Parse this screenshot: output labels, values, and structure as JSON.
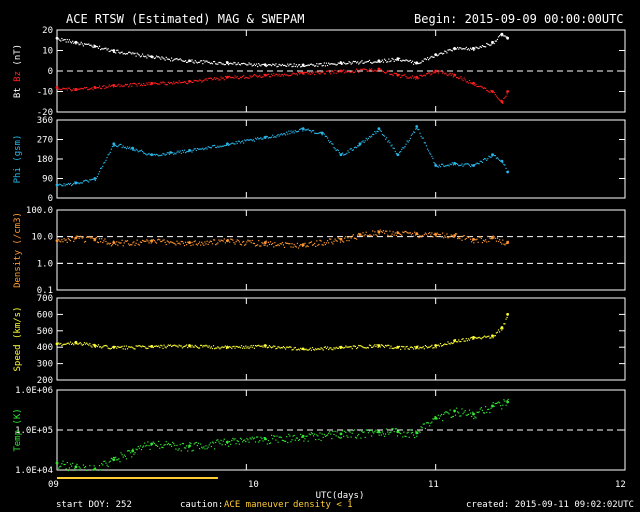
{
  "header": {
    "title": "ACE RTSW (Estimated) MAG & SWEPAM",
    "begin": "Begin: 2015-09-09 00:00:00UTC"
  },
  "footer": {
    "start_doy": "start DOY: 252",
    "caution_prefix": "caution:",
    "caution_maneuver": "ACE maneuver",
    "caution_density": "density < 1",
    "created": "created: 2015-09-11 09:02:02UTC"
  },
  "colors": {
    "background": "#000000",
    "axes": "#ffffff",
    "bt": "#ffffff",
    "bz": "#ff2020",
    "phi": "#29b6e8",
    "density": "#ff9933",
    "speed": "#ffff33",
    "temp": "#33e633",
    "caution": "#ffcc33",
    "maneuver_bar": "#ffcc33"
  },
  "chart_data": [
    {
      "type": "scatter",
      "panel": "magnetic",
      "ylabel_parts": [
        "Bt",
        "Bz",
        "(nT)"
      ],
      "ylim": [
        -20,
        20
      ],
      "yticks": [
        -20,
        -10,
        0,
        10,
        20
      ],
      "ytick_labels": [
        "-20",
        "-10",
        "0",
        "10",
        "20"
      ],
      "reference_lines": [
        0
      ],
      "series": [
        {
          "name": "Bt",
          "x": [
            9.0,
            9.1,
            9.2,
            9.3,
            9.5,
            9.7,
            9.9,
            10.1,
            10.3,
            10.5,
            10.7,
            10.8,
            10.9,
            11.0,
            11.1,
            11.2,
            11.3,
            11.35,
            11.38
          ],
          "y": [
            16,
            14,
            12,
            10,
            7,
            5,
            4,
            3,
            3,
            4,
            5,
            6,
            4,
            8,
            11,
            11,
            14,
            18,
            16
          ]
        },
        {
          "name": "Bz",
          "x": [
            9.0,
            9.1,
            9.2,
            9.3,
            9.5,
            9.7,
            9.9,
            10.1,
            10.3,
            10.5,
            10.7,
            10.8,
            10.9,
            11.0,
            11.1,
            11.2,
            11.3,
            11.35,
            11.38
          ],
          "y": [
            -8,
            -9,
            -8,
            -7,
            -6,
            -5,
            -3,
            -2,
            -1,
            0,
            1,
            -2,
            -3,
            0,
            -2,
            -6,
            -10,
            -15,
            -10
          ]
        }
      ]
    },
    {
      "type": "scatter",
      "panel": "phi",
      "ylabel": "Phi (gsm)",
      "ylim": [
        0,
        360
      ],
      "yticks": [
        0,
        90,
        180,
        270,
        360
      ],
      "ytick_labels": [
        "0",
        "90",
        "180",
        "270",
        "360"
      ],
      "series": [
        {
          "name": "Phi",
          "x": [
            9.0,
            9.1,
            9.2,
            9.3,
            9.4,
            9.5,
            9.6,
            9.7,
            9.9,
            10.1,
            10.3,
            10.4,
            10.5,
            10.6,
            10.7,
            10.8,
            10.9,
            11.0,
            11.1,
            11.2,
            11.3,
            11.35,
            11.38
          ],
          "y": [
            60,
            70,
            90,
            250,
            230,
            200,
            210,
            220,
            250,
            280,
            320,
            300,
            200,
            250,
            320,
            200,
            330,
            150,
            160,
            150,
            200,
            170,
            120
          ]
        }
      ]
    },
    {
      "type": "scatter",
      "panel": "density",
      "ylabel": "Density (/cm3)",
      "yscale": "log",
      "ylim": [
        0.1,
        100
      ],
      "yticks": [
        0.1,
        1,
        10,
        100
      ],
      "ytick_labels": [
        "0.1",
        "1.0",
        "10.0",
        "100.0"
      ],
      "reference_lines": [
        1,
        10
      ],
      "series": [
        {
          "name": "Density",
          "x": [
            9.0,
            9.1,
            9.2,
            9.3,
            9.5,
            9.7,
            9.9,
            10.1,
            10.3,
            10.5,
            10.6,
            10.7,
            10.8,
            10.9,
            11.0,
            11.1,
            11.2,
            11.3,
            11.38
          ],
          "y": [
            7,
            9,
            8,
            6,
            7,
            6,
            7,
            6,
            5,
            8,
            12,
            15,
            14,
            13,
            12,
            11,
            8,
            9,
            6
          ]
        }
      ]
    },
    {
      "type": "scatter",
      "panel": "speed",
      "ylabel": "Speed (km/s)",
      "ylim": [
        200,
        700
      ],
      "yticks": [
        200,
        300,
        400,
        500,
        600,
        700
      ],
      "ytick_labels": [
        "200",
        "300",
        "400",
        "500",
        "600",
        "700"
      ],
      "series": [
        {
          "name": "Speed",
          "x": [
            9.0,
            9.1,
            9.2,
            9.3,
            9.5,
            9.7,
            9.9,
            10.1,
            10.3,
            10.5,
            10.7,
            10.8,
            10.9,
            11.0,
            11.1,
            11.2,
            11.3,
            11.35,
            11.38
          ],
          "y": [
            420,
            430,
            410,
            400,
            405,
            410,
            400,
            410,
            390,
            400,
            410,
            400,
            400,
            410,
            440,
            460,
            470,
            520,
            600
          ]
        }
      ]
    },
    {
      "type": "scatter",
      "panel": "temperature",
      "ylabel": "Temp (K)",
      "yscale": "log",
      "ylim": [
        10000,
        1000000
      ],
      "yticks": [
        10000,
        100000,
        1000000
      ],
      "ytick_labels": [
        "1.0E+04",
        "1.0E+05",
        "1.0E+06"
      ],
      "reference_lines": [
        100000
      ],
      "series": [
        {
          "name": "Temp",
          "x": [
            9.0,
            9.1,
            9.2,
            9.3,
            9.4,
            9.5,
            9.7,
            9.9,
            10.1,
            10.3,
            10.5,
            10.7,
            10.8,
            10.9,
            11.0,
            11.1,
            11.2,
            11.3,
            11.38
          ],
          "y": [
            15000,
            12000,
            10500,
            18000,
            30000,
            45000,
            40000,
            50000,
            60000,
            70000,
            80000,
            90000,
            90000,
            85000,
            200000,
            300000,
            250000,
            400000,
            500000
          ]
        }
      ]
    }
  ],
  "x_axis": {
    "label": "UTC(days)",
    "xlim": [
      9,
      12
    ],
    "ticks": [
      9,
      10,
      11,
      12
    ],
    "tick_labels": [
      "09",
      "10",
      "11",
      "12"
    ]
  },
  "maneuver_interval": [
    9.0,
    9.85
  ]
}
